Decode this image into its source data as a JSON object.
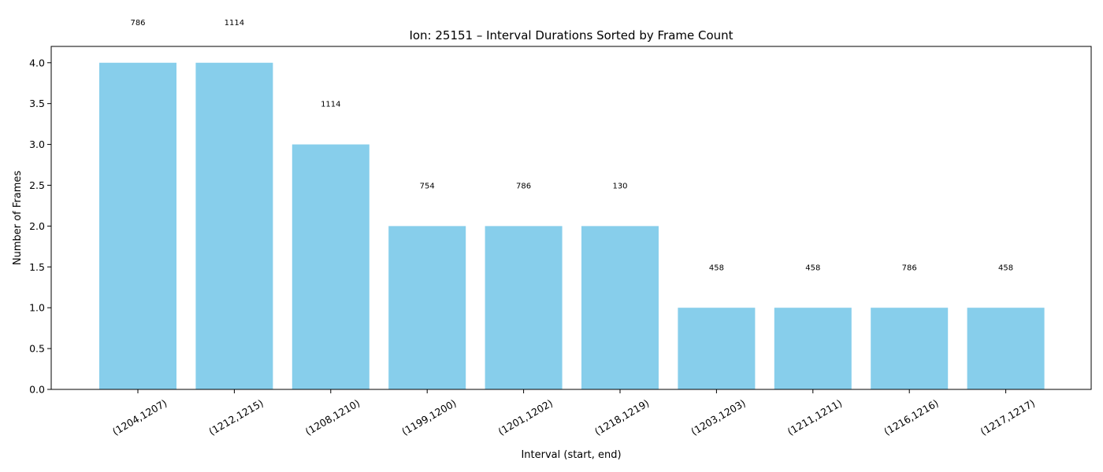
{
  "chart_data": {
    "type": "bar",
    "title": "Ion: 25151 – Interval Durations Sorted by Frame Count",
    "xlabel": "Interval (start, end)",
    "ylabel": "Number of Frames",
    "categories": [
      "(1204,1207)",
      "(1212,1215)",
      "(1208,1210)",
      "(1199,1200)",
      "(1201,1202)",
      "(1218,1219)",
      "(1203,1203)",
      "(1211,1211)",
      "(1216,1216)",
      "(1217,1217)"
    ],
    "values": [
      4,
      4,
      3,
      2,
      2,
      2,
      1,
      1,
      1,
      1
    ],
    "bar_labels": [
      "786",
      "1114",
      "1114",
      "754",
      "786",
      "130",
      "458",
      "458",
      "786",
      "458"
    ],
    "yticks": [
      "0.0",
      "0.5",
      "1.0",
      "1.5",
      "2.0",
      "2.5",
      "3.0",
      "3.5",
      "4.0"
    ],
    "ylim": [
      0,
      4.2
    ],
    "grid": false,
    "bar_color": "#87ceeb"
  }
}
